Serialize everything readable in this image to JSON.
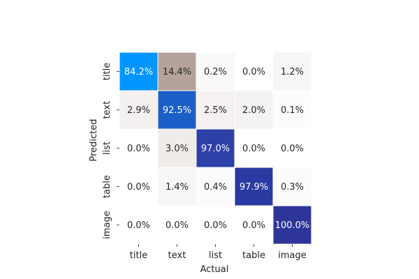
{
  "chart_data": {
    "type": "heatmap",
    "title": "",
    "xlabel": "Actual",
    "ylabel": "Predicted",
    "x_categories": [
      "title",
      "text",
      "list",
      "table",
      "image"
    ],
    "y_categories": [
      "title",
      "text",
      "list",
      "table",
      "image"
    ],
    "value_format": "percent-1dp",
    "values": [
      [
        84.2,
        14.4,
        0.2,
        0.0,
        1.2
      ],
      [
        2.9,
        92.5,
        2.5,
        2.0,
        0.1
      ],
      [
        0.0,
        3.0,
        97.0,
        0.0,
        0.0
      ],
      [
        0.0,
        1.4,
        0.4,
        97.9,
        0.3
      ],
      [
        0.0,
        0.0,
        0.0,
        0.0,
        100.0
      ]
    ],
    "cell_colors": [
      [
        "#0095ff",
        "#b4a29b",
        "#faf9f9",
        "#ffffff",
        "#f7f5f5"
      ],
      [
        "#f3f0ef",
        "#1b5ec8",
        "#f4f1f0",
        "#f5f2f2",
        "#fcfcfc"
      ],
      [
        "#ffffff",
        "#efecea",
        "#2c40a8",
        "#ffffff",
        "#ffffff"
      ],
      [
        "#ffffff",
        "#f7f5f5",
        "#fcfbfb",
        "#2b39a3",
        "#fcfbfb"
      ],
      [
        "#ffffff",
        "#ffffff",
        "#ffffff",
        "#ffffff",
        "#2e3599"
      ]
    ],
    "colorbar": false,
    "grid_lines": "white"
  }
}
